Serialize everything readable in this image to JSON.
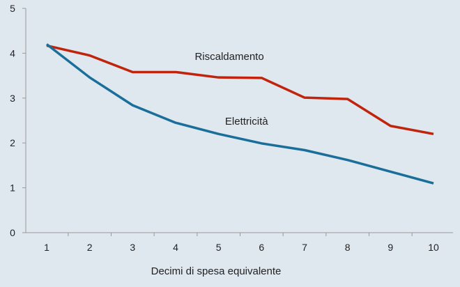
{
  "chart_data": {
    "type": "line",
    "xlabel": "Decimi di spesa equivalente",
    "ylabel": "",
    "x": [
      1,
      2,
      3,
      4,
      5,
      6,
      7,
      8,
      9,
      10
    ],
    "ylim": [
      0,
      5
    ],
    "yticks": [
      0,
      1,
      2,
      3,
      4,
      5
    ],
    "grid": false,
    "background": "#dfe7ef",
    "series": [
      {
        "name": "Riscaldamento",
        "color": "#c0240c",
        "values": [
          4.17,
          3.95,
          3.58,
          3.58,
          3.46,
          3.45,
          3.01,
          2.98,
          2.38,
          2.2
        ]
      },
      {
        "name": "Elettricità",
        "color": "#1a6f9a",
        "values": [
          4.2,
          3.46,
          2.84,
          2.45,
          2.2,
          1.99,
          1.84,
          1.62,
          1.36,
          1.1
        ]
      }
    ]
  }
}
